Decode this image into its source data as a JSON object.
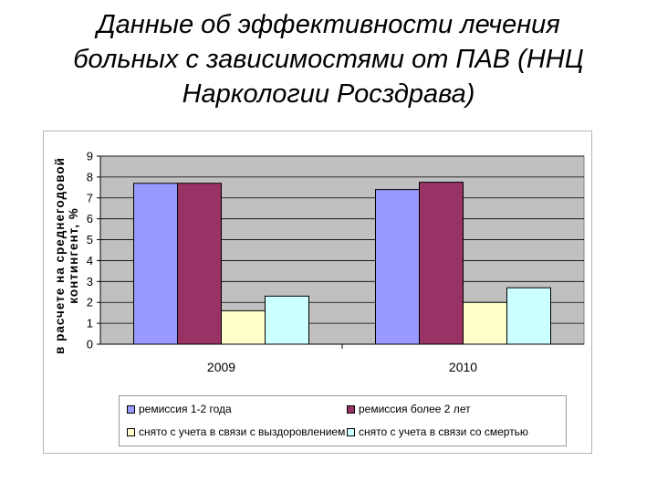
{
  "slide": {
    "title_lines": [
      "Данные об эффективности лечения",
      "больных с зависимостями от ПАВ (ННЦ",
      "Наркологии Росздрава)"
    ]
  },
  "chart_data": {
    "type": "bar",
    "categories": [
      "2009",
      "2010"
    ],
    "series": [
      {
        "name": "ремиссия 1-2 года",
        "color": "#9999ff",
        "values": [
          7.7,
          7.4
        ]
      },
      {
        "name": "ремиссия более 2 лет",
        "color": "#993366",
        "values": [
          7.7,
          7.75
        ]
      },
      {
        "name": "снято с учета в связи с выздоровлением",
        "color": "#ffffcc",
        "values": [
          1.6,
          2.0
        ]
      },
      {
        "name": "снято с учета в связи со смертью",
        "color": "#ccffff",
        "values": [
          2.3,
          2.7
        ]
      }
    ],
    "ylabel_lines": [
      "в расчете на среднегодовой",
      "контингент, %"
    ],
    "ylim": [
      0,
      9
    ],
    "yticks": [
      "0",
      "1",
      "2",
      "3",
      "4",
      "5",
      "6",
      "7",
      "8",
      "9"
    ],
    "grid": true,
    "plot_background": "#c0c0c0",
    "legend_position": "bottom"
  }
}
